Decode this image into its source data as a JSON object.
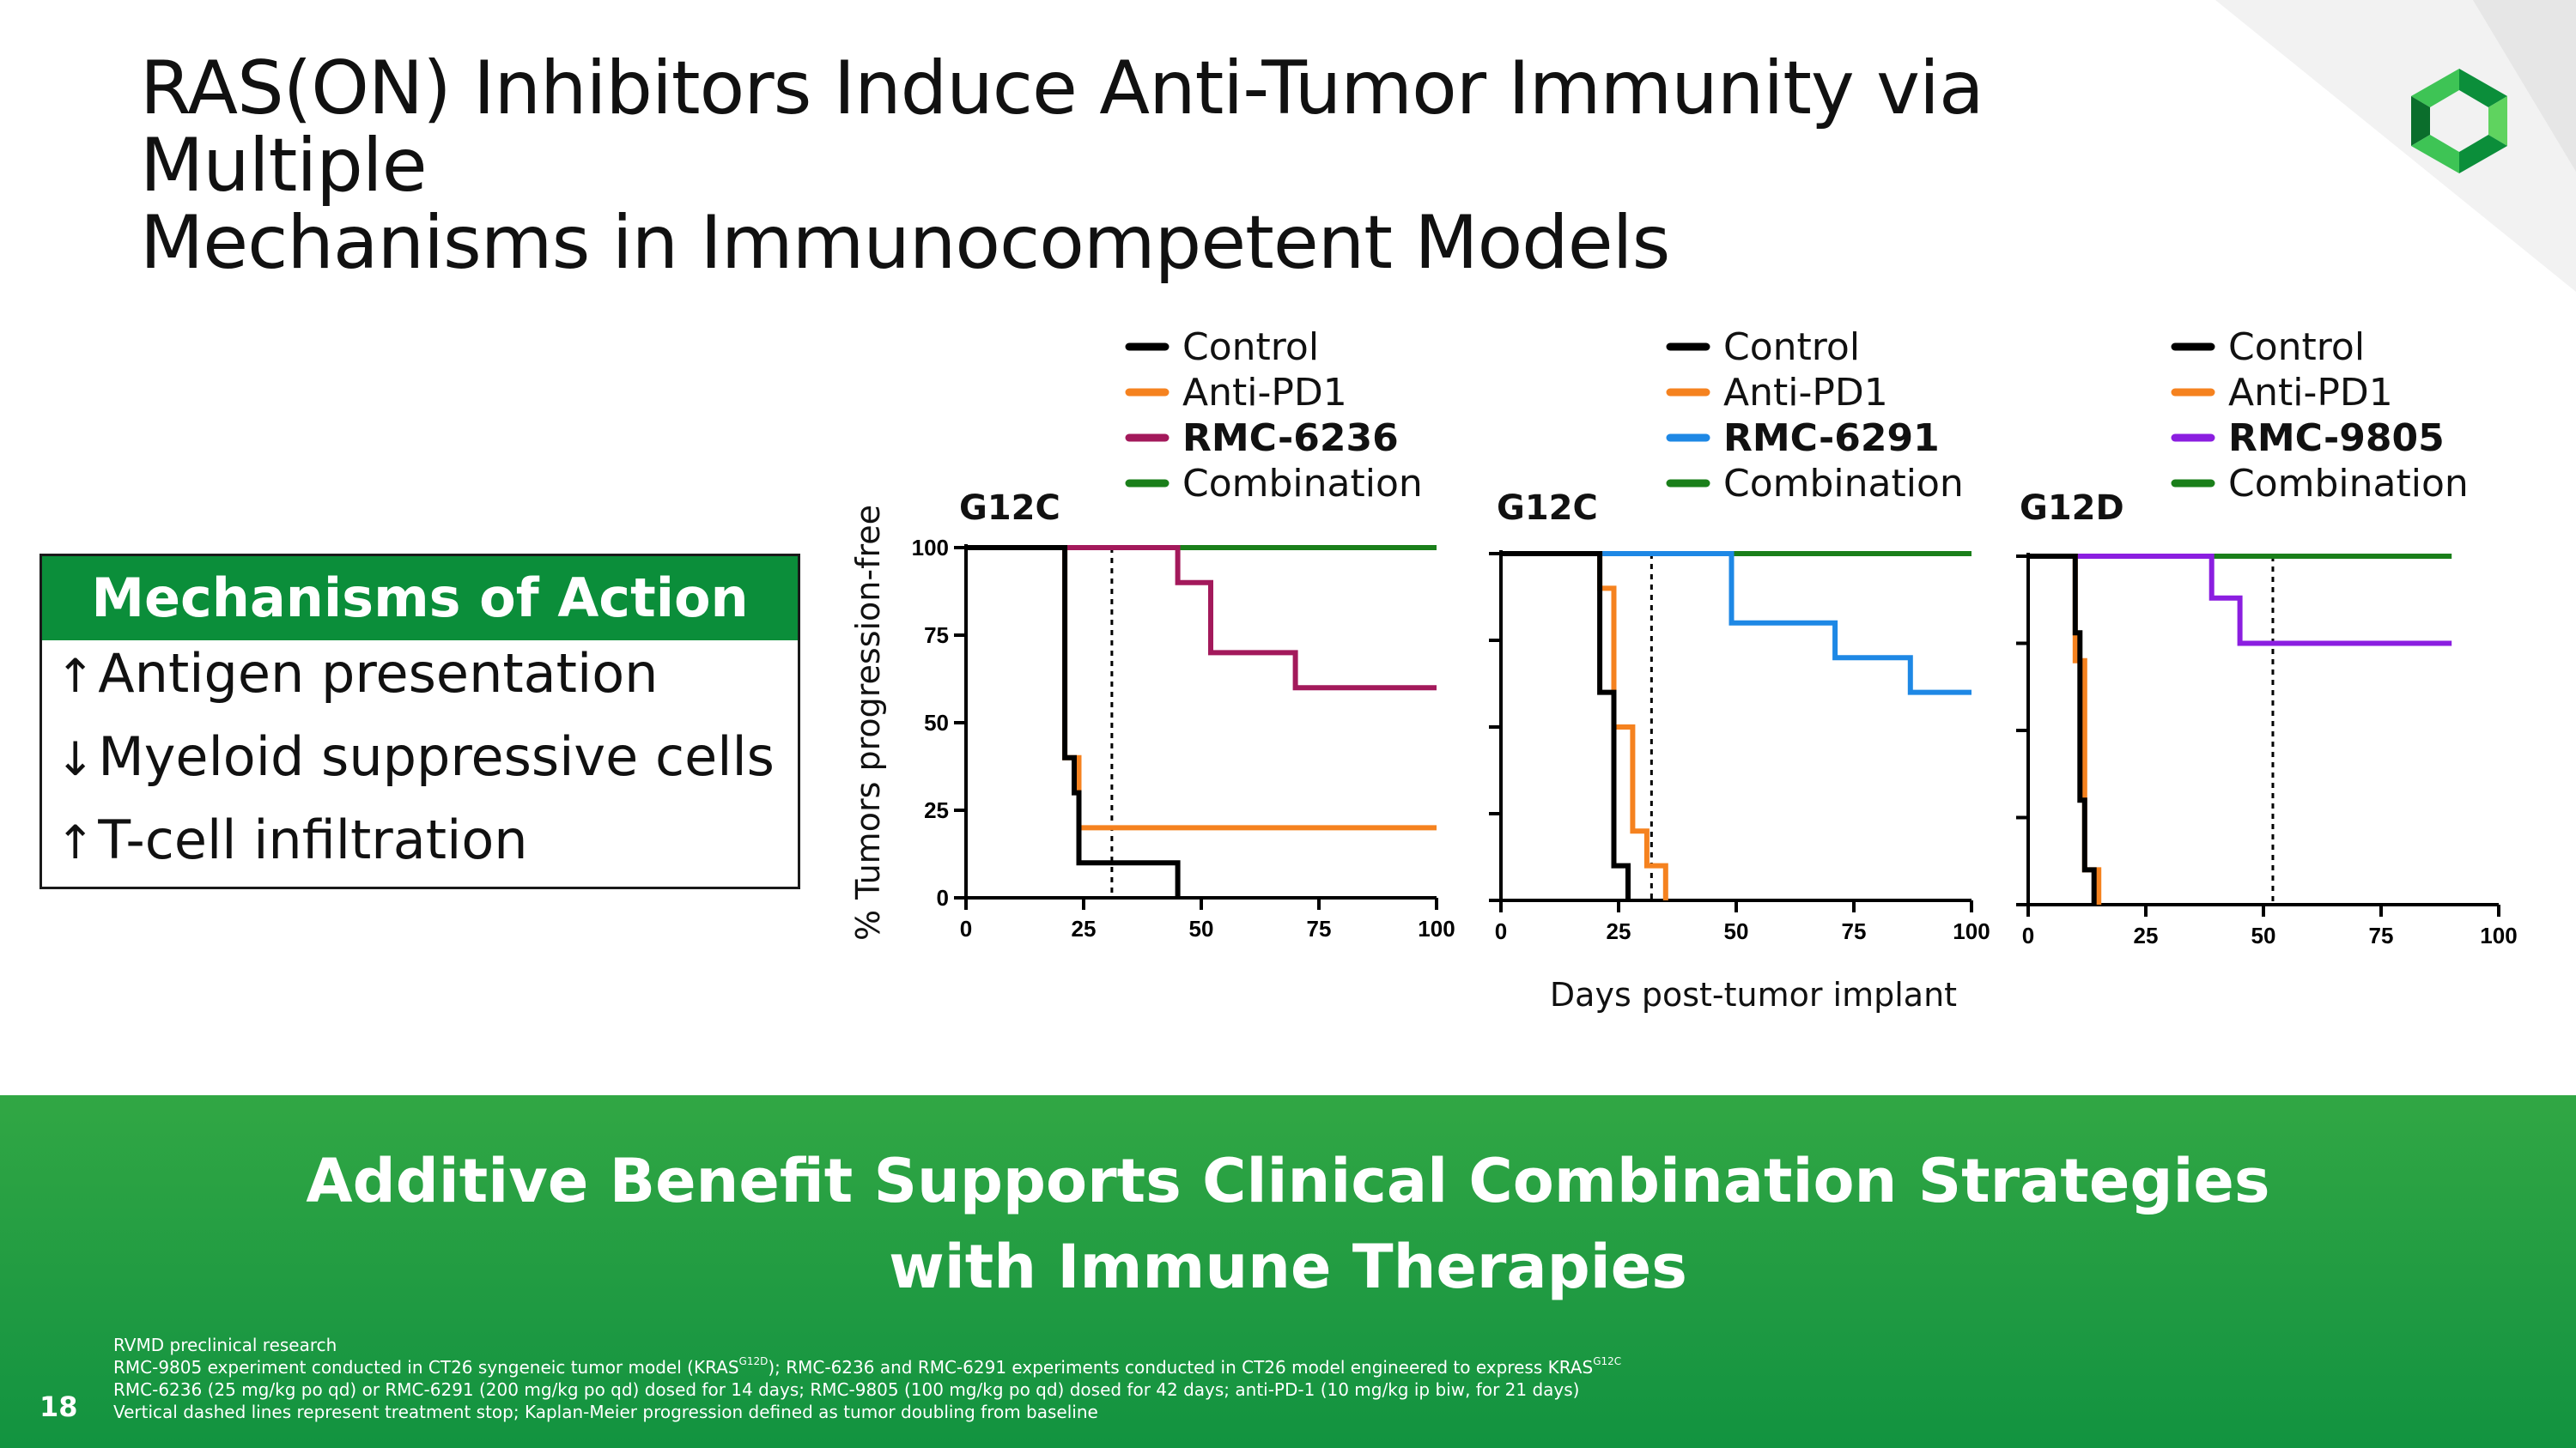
{
  "title": {
    "line1": "RAS(ON) Inhibitors Induce Anti-Tumor Immunity via Multiple",
    "line2": "Mechanisms in Immunocompetent Models"
  },
  "mechanisms": {
    "heading": "Mechanisms of Action",
    "items": [
      {
        "arrow": "↑",
        "text": "Antigen presentation"
      },
      {
        "arrow": "↓",
        "text": "Myeloid suppressive cells"
      },
      {
        "arrow": "↑",
        "text": "T-cell infiltration"
      }
    ]
  },
  "banner": {
    "line1": "Additive Benefit Supports Clinical Combination Strategies",
    "line2": "with Immune Therapies"
  },
  "footnotes": {
    "line1": "RVMD preclinical research",
    "line2_a": "RMC-9805 experiment conducted in CT26 syngeneic tumor model (KRAS",
    "line2_sup1": "G12D",
    "line2_b": "); RMC-6236 and RMC-6291 experiments conducted in CT26 model engineered to express KRAS",
    "line2_sup2": "G12C",
    "line3": "RMC-6236 (25 mg/kg po qd) or RMC-6291 (200 mg/kg po qd) dosed for 14 days; RMC-9805 (100 mg/kg po qd) dosed for 42 days; anti-PD-1 (10 mg/kg ip biw, for 21 days)",
    "line4": "Vertical dashed lines represent treatment stop; Kaplan-Meier progression defined as tumor doubling from baseline"
  },
  "page_number": "18",
  "colors": {
    "control": "#000000",
    "anti_pd1": "#f5821f",
    "rmc6236": "#a3195b",
    "rmc6291": "#1e88e5",
    "rmc9805": "#8b1ee0",
    "combination": "#1a7f1a",
    "brand_green": "#0b8e3a"
  },
  "chart_data": [
    {
      "type": "line",
      "subtype": "kaplan-meier",
      "title": "G12C",
      "ylabel": "% Tumors progression-free",
      "xlabel": "",
      "xlim": [
        0,
        100
      ],
      "ylim": [
        0,
        100
      ],
      "xticks": [
        0,
        25,
        50,
        75,
        100
      ],
      "yticks": [
        0,
        25,
        50,
        75,
        100
      ],
      "show_ytick_labels": true,
      "treatment_stop": 31,
      "series": [
        {
          "name": "Control",
          "color": "#000000",
          "bold": false,
          "points": [
            [
              0,
              100
            ],
            [
              21,
              100
            ],
            [
              21,
              40
            ],
            [
              23,
              40
            ],
            [
              23,
              30
            ],
            [
              24,
              30
            ],
            [
              24,
              10
            ],
            [
              45,
              10
            ],
            [
              45,
              0
            ]
          ]
        },
        {
          "name": "Anti-PD1",
          "color": "#f5821f",
          "bold": false,
          "points": [
            [
              0,
              100
            ],
            [
              21,
              100
            ],
            [
              21,
              40
            ],
            [
              24,
              40
            ],
            [
              24,
              20
            ],
            [
              100,
              20
            ]
          ]
        },
        {
          "name": "RMC-6236",
          "color": "#a3195b",
          "bold": true,
          "points": [
            [
              0,
              100
            ],
            [
              45,
              100
            ],
            [
              45,
              90
            ],
            [
              52,
              90
            ],
            [
              52,
              70
            ],
            [
              70,
              70
            ],
            [
              70,
              60
            ],
            [
              100,
              60
            ]
          ]
        },
        {
          "name": "Combination",
          "color": "#1a7f1a",
          "bold": false,
          "points": [
            [
              0,
              100
            ],
            [
              100,
              100
            ]
          ]
        }
      ]
    },
    {
      "type": "line",
      "subtype": "kaplan-meier",
      "title": "G12C",
      "ylabel": "",
      "xlabel": "Days post-tumor implant",
      "xlim": [
        0,
        100
      ],
      "ylim": [
        0,
        100
      ],
      "xticks": [
        0,
        25,
        50,
        75,
        100
      ],
      "yticks": [
        0,
        25,
        50,
        75,
        100
      ],
      "show_ytick_labels": false,
      "treatment_stop": 32,
      "series": [
        {
          "name": "Control",
          "color": "#000000",
          "bold": false,
          "points": [
            [
              0,
              100
            ],
            [
              21,
              100
            ],
            [
              21,
              60
            ],
            [
              24,
              60
            ],
            [
              24,
              10
            ],
            [
              27,
              10
            ],
            [
              27,
              0
            ]
          ]
        },
        {
          "name": "Anti-PD1",
          "color": "#f5821f",
          "bold": false,
          "points": [
            [
              0,
              100
            ],
            [
              21,
              100
            ],
            [
              21,
              90
            ],
            [
              24,
              90
            ],
            [
              24,
              50
            ],
            [
              28,
              50
            ],
            [
              28,
              20
            ],
            [
              31,
              20
            ],
            [
              31,
              10
            ],
            [
              35,
              10
            ],
            [
              35,
              0
            ]
          ]
        },
        {
          "name": "RMC-6291",
          "color": "#1e88e5",
          "bold": true,
          "points": [
            [
              0,
              100
            ],
            [
              49,
              100
            ],
            [
              49,
              80
            ],
            [
              71,
              80
            ],
            [
              71,
              70
            ],
            [
              87,
              70
            ],
            [
              87,
              60
            ],
            [
              100,
              60
            ]
          ]
        },
        {
          "name": "Combination",
          "color": "#1a7f1a",
          "bold": false,
          "points": [
            [
              0,
              100
            ],
            [
              100,
              100
            ]
          ]
        }
      ]
    },
    {
      "type": "line",
      "subtype": "kaplan-meier",
      "title": "G12D",
      "ylabel": "",
      "xlabel": "",
      "xlim": [
        0,
        100
      ],
      "ylim": [
        0,
        100
      ],
      "xticks": [
        0,
        25,
        50,
        75,
        100
      ],
      "yticks": [
        0,
        25,
        50,
        75,
        100
      ],
      "show_ytick_labels": false,
      "treatment_stop": 52,
      "series": [
        {
          "name": "Control",
          "color": "#000000",
          "bold": false,
          "points": [
            [
              0,
              100
            ],
            [
              10,
              100
            ],
            [
              10,
              78
            ],
            [
              11,
              78
            ],
            [
              11,
              30
            ],
            [
              12,
              30
            ],
            [
              12,
              10
            ],
            [
              14,
              10
            ],
            [
              14,
              0
            ]
          ]
        },
        {
          "name": "Anti-PD1",
          "color": "#f5821f",
          "bold": false,
          "points": [
            [
              0,
              100
            ],
            [
              10,
              100
            ],
            [
              10,
              70
            ],
            [
              12,
              70
            ],
            [
              12,
              10
            ],
            [
              15,
              10
            ],
            [
              15,
              0
            ]
          ]
        },
        {
          "name": "RMC-9805",
          "color": "#8b1ee0",
          "bold": true,
          "points": [
            [
              0,
              100
            ],
            [
              39,
              100
            ],
            [
              39,
              88
            ],
            [
              45,
              88
            ],
            [
              45,
              75
            ],
            [
              90,
              75
            ]
          ]
        },
        {
          "name": "Combination",
          "color": "#1a7f1a",
          "bold": false,
          "points": [
            [
              0,
              100
            ],
            [
              90,
              100
            ]
          ]
        }
      ]
    }
  ]
}
